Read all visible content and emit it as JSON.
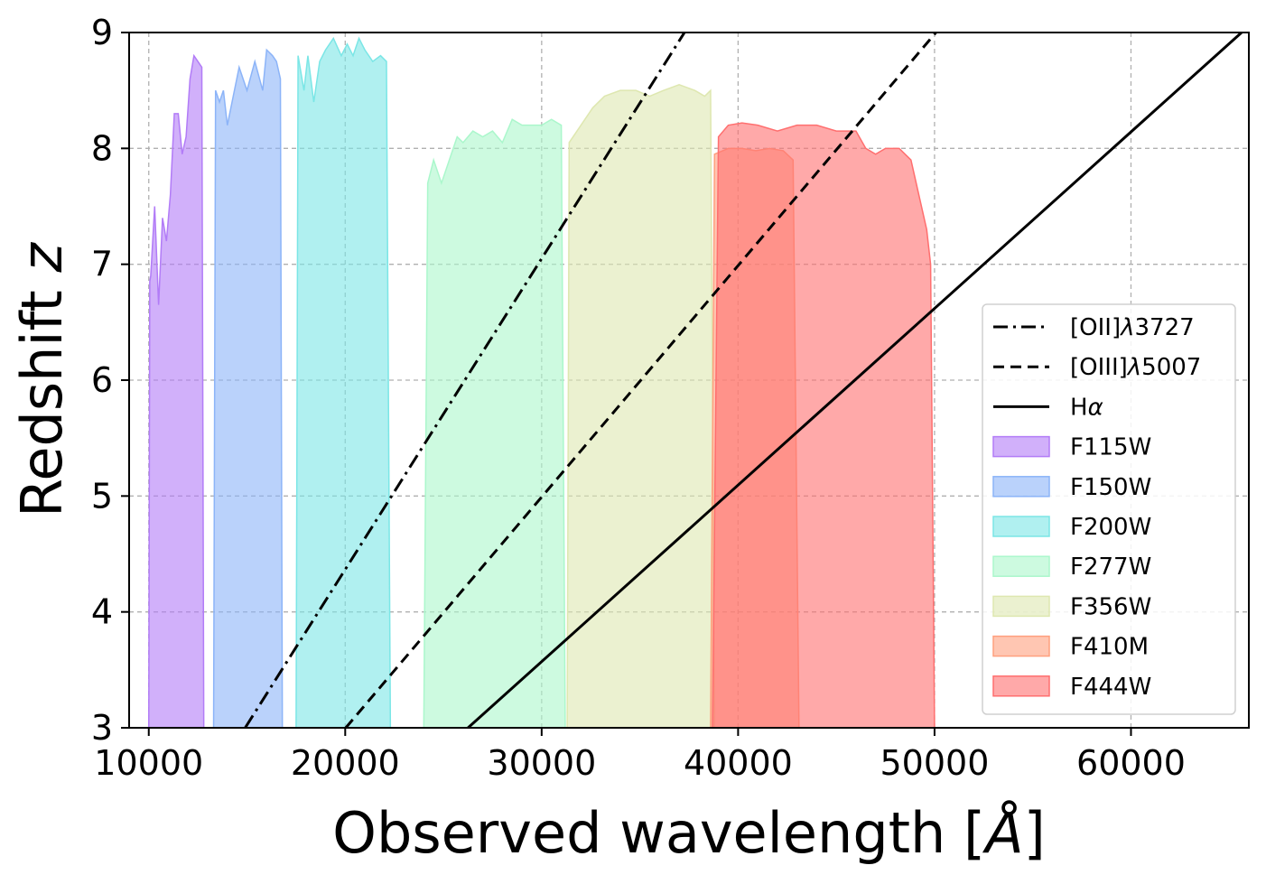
{
  "chart_data": {
    "type": "area",
    "xlabel_text": "Observed wavelength [",
    "xlabel_unit": "Å",
    "xlabel_close": "]",
    "ylabel_text": "Redshift ",
    "ylabel_var": "z",
    "xlim": [
      9000,
      66000
    ],
    "ylim": [
      3,
      9
    ],
    "xticks": [
      10000,
      20000,
      30000,
      40000,
      50000,
      60000
    ],
    "xtick_labels": [
      "10000",
      "20000",
      "30000",
      "40000",
      "50000",
      "60000"
    ],
    "yticks": [
      3,
      4,
      5,
      6,
      7,
      8,
      9
    ],
    "ytick_labels": [
      "3",
      "4",
      "5",
      "6",
      "7",
      "8",
      "9"
    ],
    "grid": true,
    "legend_position": "lower-right",
    "lines": [
      {
        "name": "[OII]λ3727",
        "rest_wavelength": 3727,
        "style": "dashdot",
        "color": "#000000"
      },
      {
        "name": "[OIII]λ5007",
        "rest_wavelength": 5007,
        "style": "dashed",
        "color": "#000000"
      },
      {
        "name": "Hα",
        "rest_wavelength": 6563,
        "style": "solid",
        "color": "#000000"
      }
    ],
    "legend_lines": [
      {
        "prefix": "[OII]",
        "greek": "λ",
        "suffix": "3727"
      },
      {
        "prefix": "[OIII]",
        "greek": "λ",
        "suffix": "5007"
      },
      {
        "prefix": "H",
        "greek": "α",
        "suffix": ""
      }
    ],
    "filters": [
      {
        "name": "F115W",
        "color": "#b27cf7",
        "x": [
          10000,
          10050,
          10100,
          10300,
          10500,
          10700,
          10900,
          11100,
          11300,
          11500,
          11700,
          11900,
          12100,
          12300,
          12500,
          12700,
          12800,
          12900
        ],
        "y": [
          3,
          6.85,
          6.9,
          7.5,
          6.65,
          7.4,
          7.2,
          7.6,
          8.3,
          8.3,
          7.95,
          8.1,
          8.6,
          8.8,
          8.75,
          8.7,
          3,
          3
        ]
      },
      {
        "name": "F150W",
        "color": "#8cb4f8",
        "x": [
          13300,
          13400,
          13600,
          13800,
          14000,
          14300,
          14600,
          15000,
          15400,
          15800,
          16000,
          16300,
          16500,
          16700,
          16800
        ],
        "y": [
          3,
          8.5,
          8.4,
          8.5,
          8.2,
          8.45,
          8.7,
          8.5,
          8.75,
          8.5,
          8.85,
          8.8,
          8.75,
          8.6,
          3
        ]
      },
      {
        "name": "F200W",
        "color": "#7be6e6",
        "x": [
          17500,
          17600,
          17900,
          18100,
          18400,
          18700,
          19000,
          19400,
          19800,
          20100,
          20400,
          20700,
          21000,
          21400,
          21800,
          22100,
          22300,
          22400
        ],
        "y": [
          3,
          8.8,
          8.5,
          8.8,
          8.4,
          8.75,
          8.85,
          8.95,
          8.8,
          8.9,
          8.8,
          8.95,
          8.85,
          8.75,
          8.8,
          8.75,
          3,
          3
        ]
      },
      {
        "name": "F277W",
        "color": "#abf7cc",
        "x": [
          24000,
          24200,
          24500,
          24900,
          25300,
          25700,
          26000,
          26500,
          27000,
          27500,
          28000,
          28500,
          29000,
          29500,
          30000,
          30500,
          31000,
          31200
        ],
        "y": [
          3,
          7.7,
          7.9,
          7.7,
          7.9,
          8.1,
          8.05,
          8.15,
          8.1,
          8.15,
          8.05,
          8.25,
          8.2,
          8.2,
          8.2,
          8.25,
          8.2,
          3
        ]
      },
      {
        "name": "F356W",
        "color": "#dee7b0",
        "x": [
          31300,
          31400,
          32000,
          32600,
          33200,
          34000,
          34800,
          35500,
          36200,
          37000,
          37800,
          38300,
          38600,
          38800
        ],
        "y": [
          3,
          8.05,
          8.2,
          8.35,
          8.45,
          8.5,
          8.5,
          8.45,
          8.5,
          8.55,
          8.5,
          8.45,
          8.5,
          3
        ]
      },
      {
        "name": "F410M",
        "color": "#ffa07e",
        "x": [
          38600,
          38800,
          39500,
          40200,
          40900,
          41600,
          42300,
          42800,
          43100,
          43200
        ],
        "y": [
          3,
          7.95,
          8.0,
          8.0,
          7.98,
          8.0,
          7.98,
          7.9,
          3,
          3
        ]
      },
      {
        "name": "F444W",
        "color": "#ff6f6f",
        "x": [
          38700,
          39000,
          39500,
          40200,
          41000,
          42000,
          43000,
          44000,
          45000,
          46000,
          46500,
          47000,
          47500,
          48200,
          48800,
          49200,
          49600,
          49800,
          50000,
          50200
        ],
        "y": [
          3,
          8.1,
          8.2,
          8.22,
          8.2,
          8.15,
          8.2,
          8.2,
          8.15,
          8.15,
          8.0,
          7.95,
          8.0,
          8.0,
          7.9,
          7.6,
          7.3,
          7.0,
          3,
          3
        ]
      }
    ]
  }
}
